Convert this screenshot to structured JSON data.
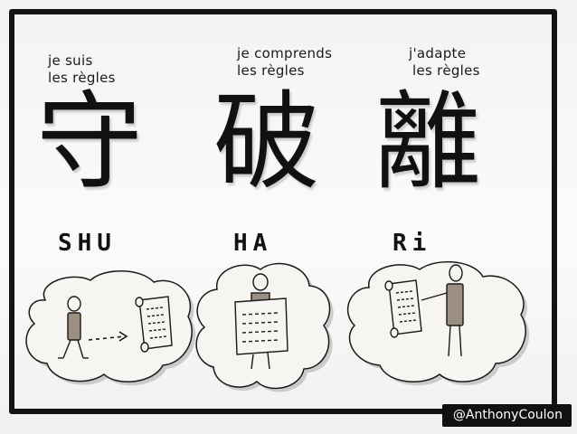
{
  "captions": {
    "shu": [
      "je suis",
      "les règles"
    ],
    "ha": [
      "je comprends",
      "les règles"
    ],
    "ri": [
      "j'adapte",
      "les règles"
    ]
  },
  "kanji": {
    "shu": "守",
    "ha": "破",
    "ri": "離"
  },
  "romaji": {
    "shu": "SHU",
    "ha": "HA",
    "ri": "Ri"
  },
  "signature": "@AnthonyCoulon",
  "colors": {
    "ink": "#141414",
    "cloud_shadow": "#bdbdbd",
    "figure_fill": "#9b8f82",
    "paper": "#f6f5f2"
  }
}
